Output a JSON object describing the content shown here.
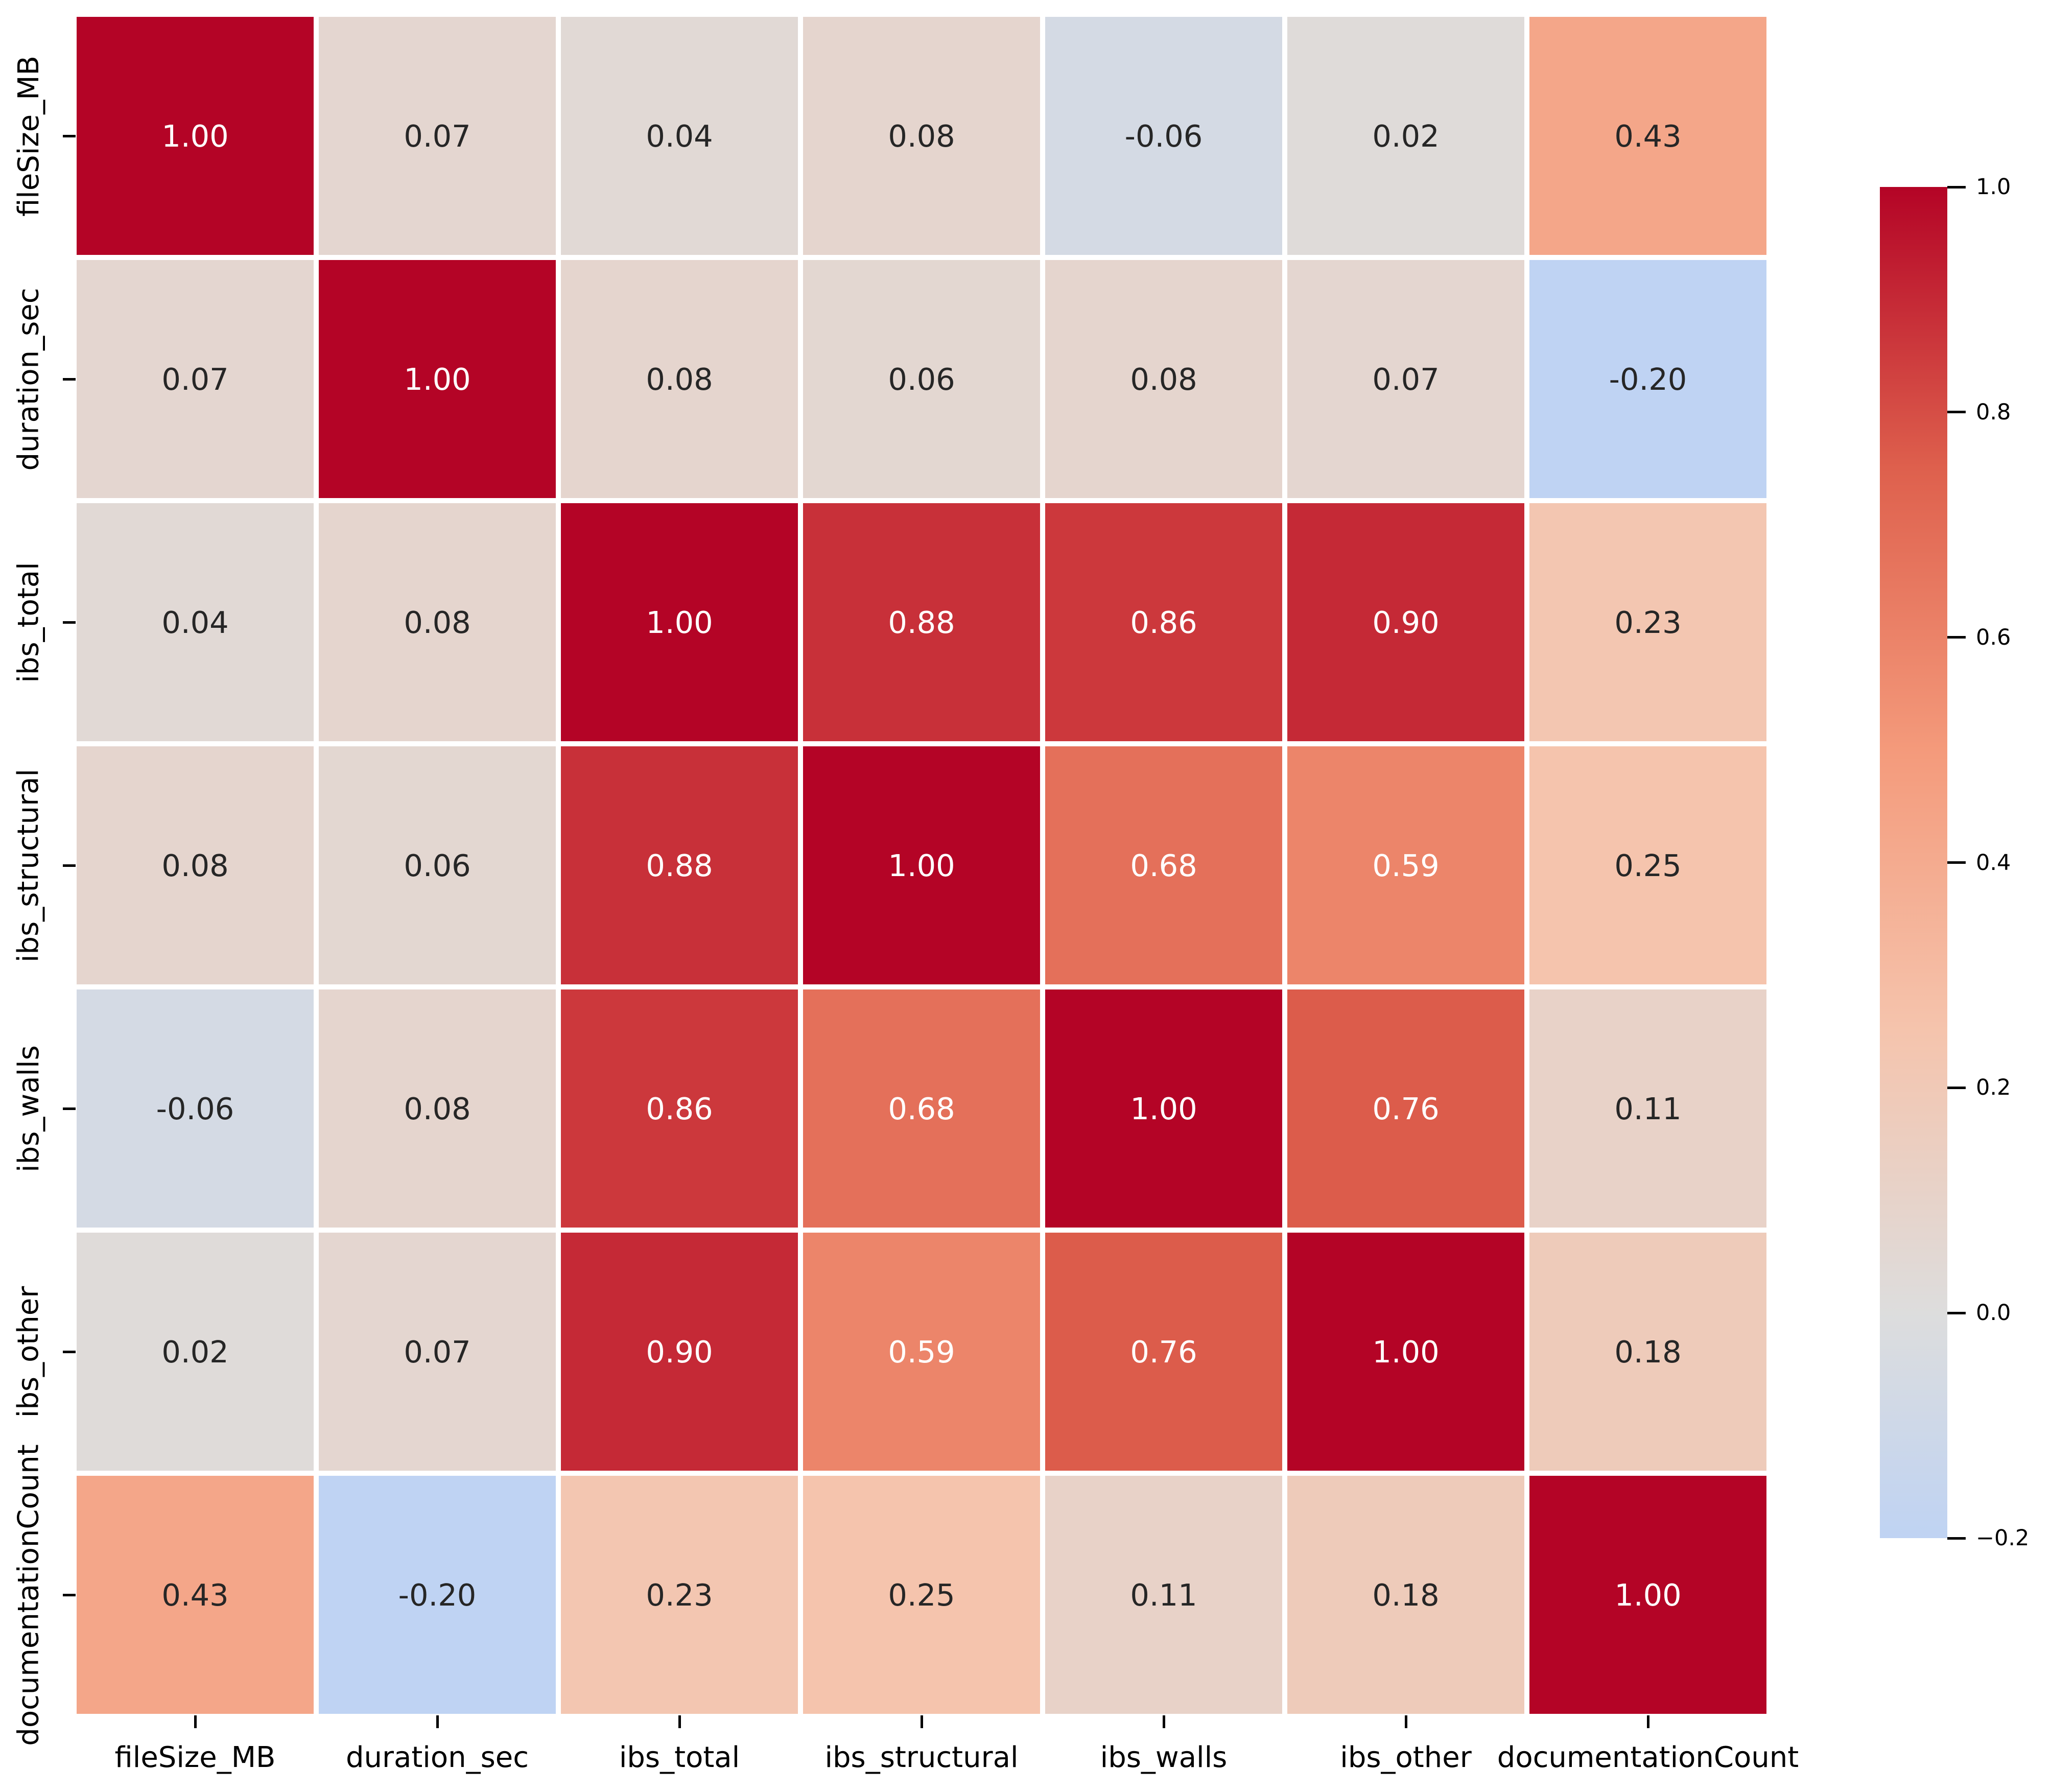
{
  "figure": {
    "background": "#ffffff",
    "title": ""
  },
  "chart_data": {
    "type": "heatmap",
    "title": "",
    "xlabel": "",
    "ylabel": "",
    "categories": [
      "fileSize_MB",
      "duration_sec",
      "ibs_total",
      "ibs_structural",
      "ibs_walls",
      "ibs_other",
      "documentationCount"
    ],
    "x_tick_labels": [
      "fileSize_MB",
      "duration_sec",
      "ibs_total",
      "ibs_structural",
      "ibs_walls",
      "ibs_other",
      "documentationCount"
    ],
    "y_tick_labels": [
      "fileSize_MB",
      "duration_sec",
      "ibs_total",
      "ibs_structural",
      "ibs_walls",
      "ibs_other",
      "documentationCount"
    ],
    "matrix": [
      [
        1.0,
        0.07,
        0.04,
        0.08,
        -0.06,
        0.02,
        0.43
      ],
      [
        0.07,
        1.0,
        0.08,
        0.06,
        0.08,
        0.07,
        -0.2
      ],
      [
        0.04,
        0.08,
        1.0,
        0.88,
        0.86,
        0.9,
        0.23
      ],
      [
        0.08,
        0.06,
        0.88,
        1.0,
        0.68,
        0.59,
        0.25
      ],
      [
        -0.06,
        0.08,
        0.86,
        0.68,
        1.0,
        0.76,
        0.11
      ],
      [
        0.02,
        0.07,
        0.9,
        0.59,
        0.76,
        1.0,
        0.18
      ],
      [
        0.43,
        -0.2,
        0.23,
        0.25,
        0.11,
        0.18,
        1.0
      ]
    ],
    "annotation": {
      "format_decimals": 2,
      "light_text": "#ffffff",
      "dark_text": "#262626",
      "luminance_threshold": 0.408
    },
    "colormap": {
      "name": "coolwarm",
      "center": 0.0,
      "vmin": -0.2,
      "vmax": 1.0,
      "anchors": [
        {
          "t": 0.0,
          "hex": "#3b4cc0"
        },
        {
          "t": 0.125,
          "hex": "#6282ea"
        },
        {
          "t": 0.25,
          "hex": "#8db0fe"
        },
        {
          "t": 0.375,
          "hex": "#b8d0f9"
        },
        {
          "t": 0.5,
          "hex": "#dddddd"
        },
        {
          "t": 0.625,
          "hex": "#f5c4ad"
        },
        {
          "t": 0.75,
          "hex": "#f49a7b"
        },
        {
          "t": 0.875,
          "hex": "#de604d"
        },
        {
          "t": 1.0,
          "hex": "#b40426"
        }
      ]
    },
    "colorbar": {
      "position": "right",
      "ticks": [
        {
          "value": 1.0,
          "label": "1.0"
        },
        {
          "value": 0.8,
          "label": "0.8"
        },
        {
          "value": 0.6,
          "label": "0.6"
        },
        {
          "value": 0.4,
          "label": "0.4"
        },
        {
          "value": 0.2,
          "label": "0.2"
        },
        {
          "value": 0.0,
          "label": "0.0"
        },
        {
          "value": -0.2,
          "label": "−0.2"
        }
      ]
    },
    "grid_line_color": "#ffffff",
    "axis_tick_color": "#000000",
    "grid": false,
    "legend_position": "colorbar-right"
  }
}
